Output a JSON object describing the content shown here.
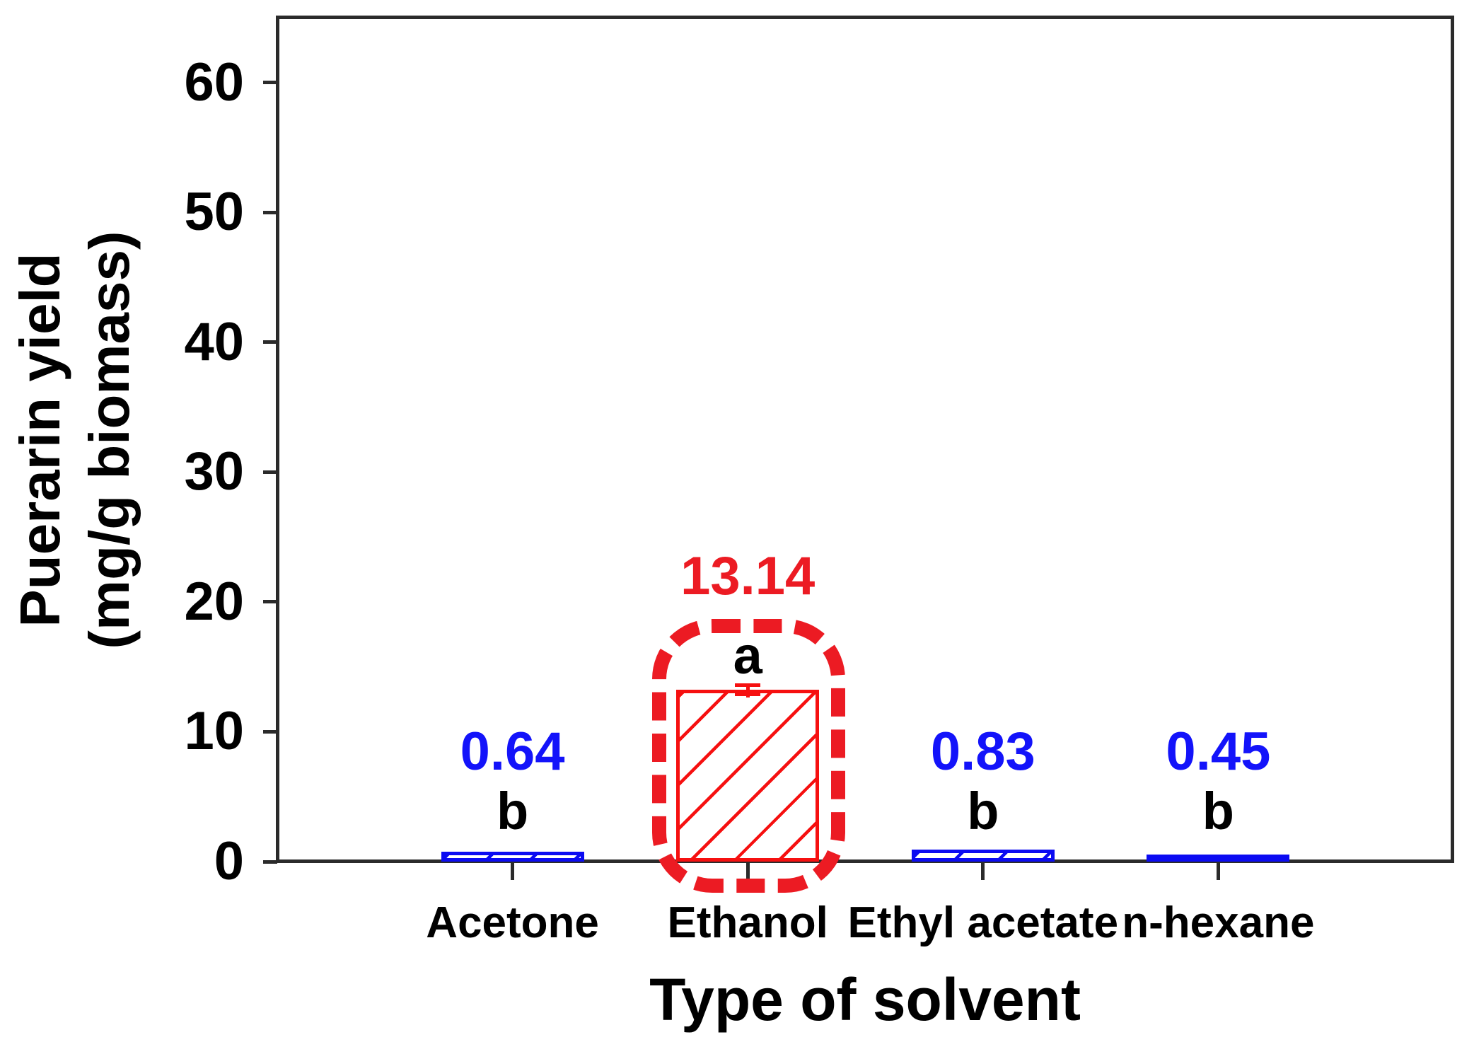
{
  "chart_data": {
    "type": "bar",
    "title": "",
    "xlabel": "Type of solvent",
    "ylabel_lines": [
      "Puerarin yield",
      "(mg/g biomass)"
    ],
    "ylabel": "Puerarin yield (mg/g biomass)",
    "categories": [
      "Acetone",
      "Ethanol",
      "Ethyl acetate",
      "n-hexane"
    ],
    "values": [
      0.64,
      13.14,
      0.83,
      0.45
    ],
    "value_labels": [
      "0.64",
      "13.14",
      "0.83",
      "0.45"
    ],
    "significance_letters": [
      "b",
      "a",
      "b",
      "b"
    ],
    "highlight_index": 1,
    "highlight_style": "red-dashed-rounded-outline",
    "error_bar": {
      "category": "Ethanol",
      "visible": true
    },
    "yticks": [
      0,
      10,
      20,
      30,
      40,
      50,
      60
    ],
    "ylim": [
      0,
      65
    ],
    "grid": false,
    "legend": null,
    "hatch": "diagonal-forward-slash",
    "colors": {
      "axis": "#2b2b2b",
      "text": "#000000",
      "bar_default": "#0b0bf2",
      "label_default": "#1313fa",
      "bar_highlight": "#f61010",
      "accent_highlight": "#ec1b23",
      "background": "#ffffff"
    }
  }
}
